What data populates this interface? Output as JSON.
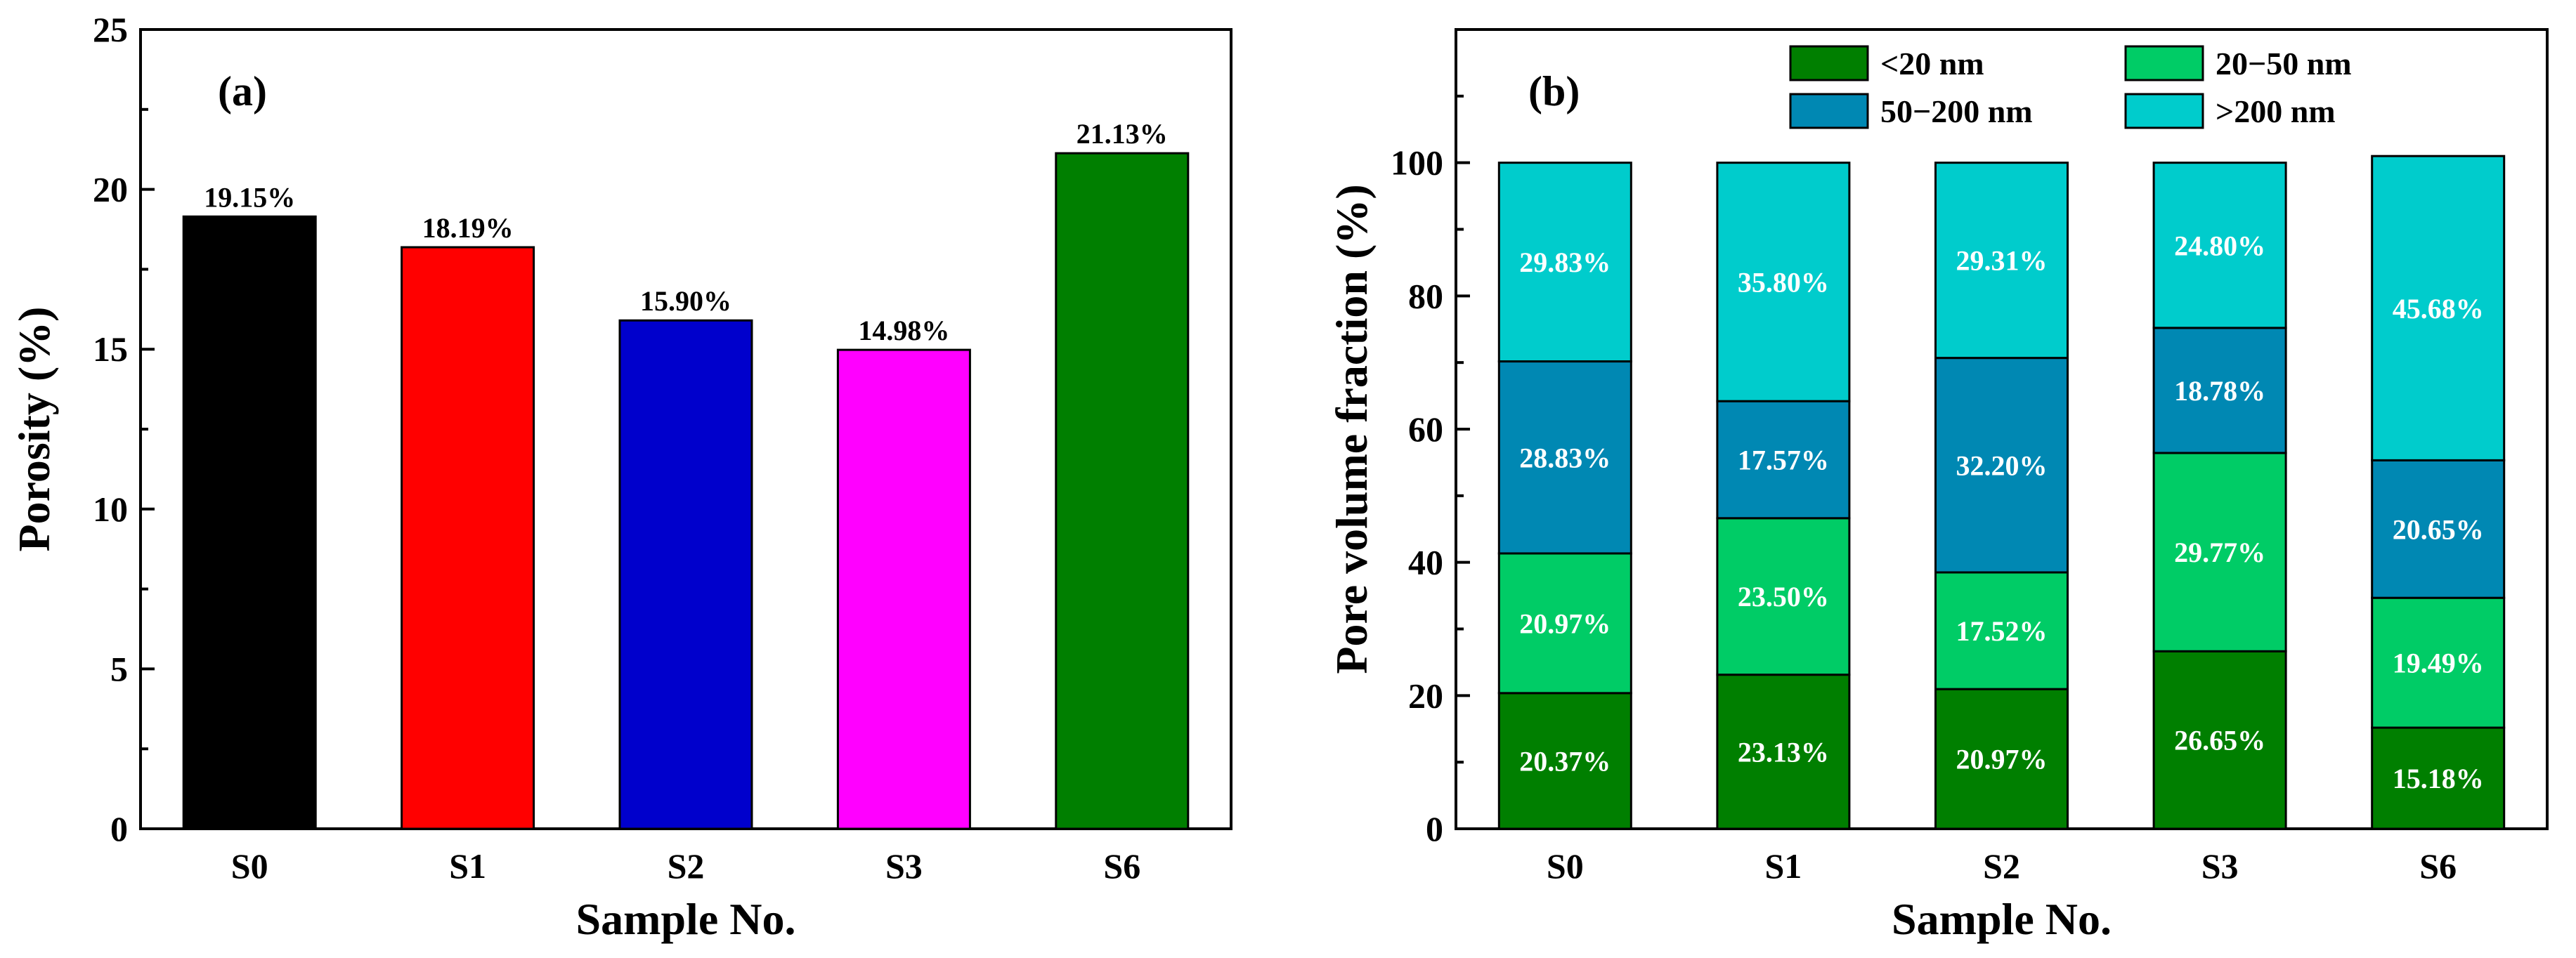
{
  "chart_data": [
    {
      "type": "bar",
      "panel_label": "(a)",
      "categories": [
        "S0",
        "S1",
        "S2",
        "S3",
        "S6"
      ],
      "values": [
        19.15,
        18.19,
        15.9,
        14.98,
        21.13
      ],
      "data_labels": [
        "19.15%",
        "18.19%",
        "15.90%",
        "14.98%",
        "21.13%"
      ],
      "colors": [
        "#000000",
        "#ff0000",
        "#0000cc",
        "#ff00ff",
        "#007f00"
      ],
      "xlabel": "Sample No.",
      "ylabel": "Porosity (%)",
      "ylim": [
        0,
        25
      ],
      "yticks": [
        0,
        5,
        10,
        15,
        20,
        25
      ],
      "grid": false
    },
    {
      "type": "bar",
      "stacked": true,
      "panel_label": "(b)",
      "categories": [
        "S0",
        "S1",
        "S2",
        "S3",
        "S6"
      ],
      "series": [
        {
          "name": "<20 nm",
          "color": "#007f00",
          "values": [
            20.37,
            23.13,
            20.97,
            26.65,
            15.18
          ],
          "labels": [
            "20.37%",
            "23.13%",
            "20.97%",
            "26.65%",
            "15.18%"
          ]
        },
        {
          "name": "20−50 nm",
          "color": "#00cc66",
          "values": [
            20.97,
            23.5,
            17.52,
            29.77,
            19.49
          ],
          "labels": [
            "20.97%",
            "23.50%",
            "17.52%",
            "29.77%",
            "19.49%"
          ]
        },
        {
          "name": "50−200 nm",
          "color": "#0088b3",
          "values": [
            28.83,
            17.57,
            32.2,
            18.78,
            20.65
          ],
          "labels": [
            "28.83%",
            "17.57%",
            "32.20%",
            "18.78%",
            "20.65%"
          ]
        },
        {
          "name": ">200 nm",
          "color": "#00cccc",
          "values": [
            29.83,
            35.8,
            29.31,
            24.8,
            45.68
          ],
          "labels": [
            "29.83%",
            "35.80%",
            "29.31%",
            "24.80%",
            "45.68%"
          ]
        }
      ],
      "xlabel": "Sample No.",
      "ylabel": "Pore volume fraction (%)",
      "ylim": [
        0,
        120
      ],
      "yticks": [
        0,
        20,
        40,
        60,
        80,
        100
      ],
      "legend_position": "top",
      "grid": false
    }
  ]
}
